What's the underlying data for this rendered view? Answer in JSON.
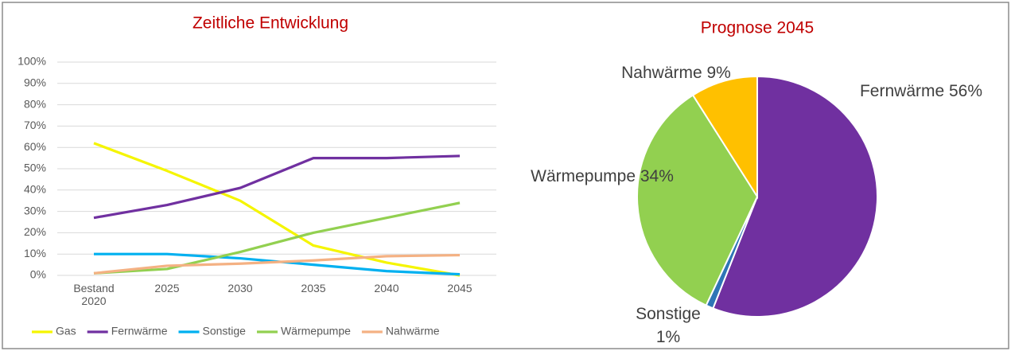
{
  "chart_data": [
    {
      "type": "line",
      "title": "Zeitliche Entwicklung",
      "categories": [
        "Bestand 2020",
        "2025",
        "2030",
        "2035",
        "2040",
        "2045"
      ],
      "ylim": [
        0,
        100
      ],
      "yticks": [
        {
          "value": 0,
          "label": "0%"
        },
        {
          "value": 10,
          "label": "10%"
        },
        {
          "value": 20,
          "label": "20%"
        },
        {
          "value": 30,
          "label": "30%"
        },
        {
          "value": 40,
          "label": "40%"
        },
        {
          "value": 50,
          "label": "50%"
        },
        {
          "value": 60,
          "label": "60%"
        },
        {
          "value": 70,
          "label": "70%"
        },
        {
          "value": 80,
          "label": "80%"
        },
        {
          "value": 90,
          "label": "90%"
        },
        {
          "value": 100,
          "label": "100%"
        }
      ],
      "grid": true,
      "legend": "bottom",
      "series": [
        {
          "name": "Gas",
          "color": "#f5f500",
          "values": [
            62,
            49,
            35,
            14,
            6,
            0
          ]
        },
        {
          "name": "Fernwärme",
          "color": "#7030a0",
          "values": [
            27,
            33,
            41,
            55,
            55,
            56
          ]
        },
        {
          "name": "Sonstige",
          "color": "#00b0f0",
          "values": [
            10,
            10,
            8,
            5,
            2,
            0.5
          ]
        },
        {
          "name": "Wärmepumpe",
          "color": "#92d050",
          "values": [
            1,
            3,
            11,
            20,
            27,
            34
          ]
        },
        {
          "name": "Nahwärme",
          "color": "#f4b183",
          "values": [
            1,
            4.5,
            5.5,
            7,
            9,
            9.5
          ]
        }
      ]
    },
    {
      "type": "pie",
      "title": "Prognose 2045",
      "categories": [
        "Fernwärme",
        "Sonstige",
        "Wärmepumpe",
        "Nahwärme"
      ],
      "values": [
        56,
        1,
        34,
        9
      ],
      "value_labels": [
        "56%",
        "1%",
        "34%",
        "9%"
      ],
      "colors": [
        "#7030a0",
        "#2e75b6",
        "#92d050",
        "#ffc000"
      ]
    }
  ]
}
